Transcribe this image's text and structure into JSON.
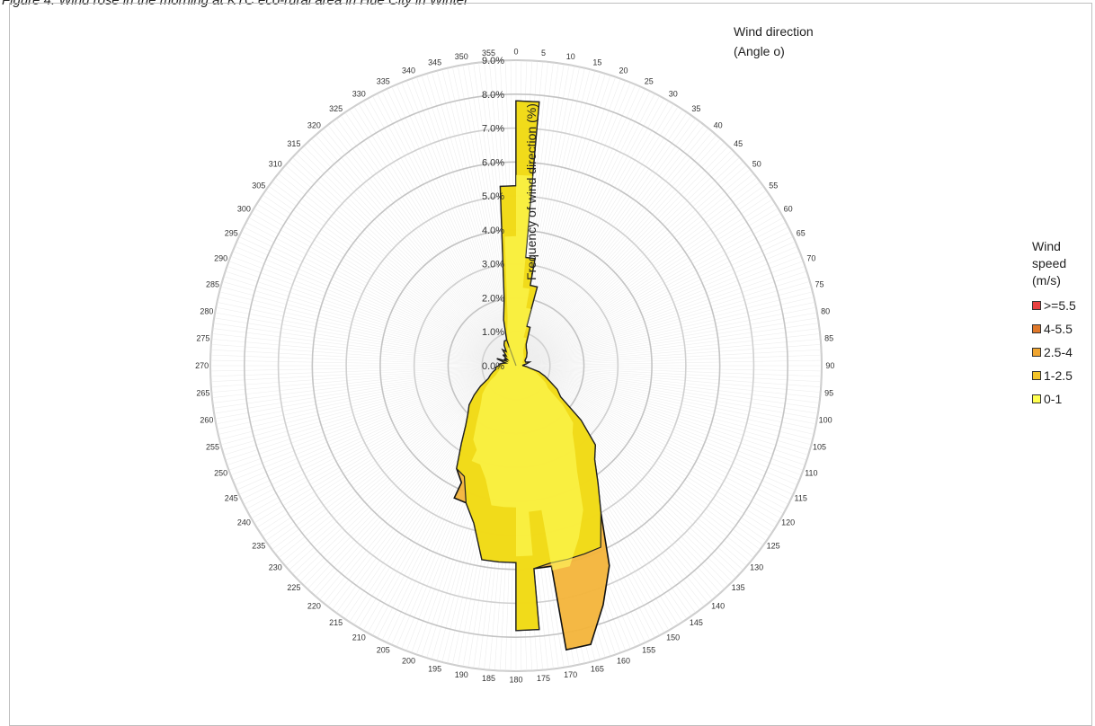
{
  "caption": "Figure 4. Wind rose in the morning at KTC eco-rural area in Hue City in Winter",
  "chart_data": {
    "type": "rose",
    "angle_title_line1": "Wind direction",
    "angle_title_line2": "(Angle  o)",
    "radial_title": "Frequency of wind direction (%)",
    "radial_ticks": [
      "0.0%",
      "1.0%",
      "2.0%",
      "3.0%",
      "4.0%",
      "5.0%",
      "6.0%",
      "7.0%",
      "8.0%",
      "9.0%"
    ],
    "rmax": 9.0,
    "direction_labels": [
      "0",
      "5",
      "10",
      "15",
      "20",
      "25",
      "30",
      "35",
      "40",
      "45",
      "50",
      "55",
      "60",
      "65",
      "70",
      "75",
      "80",
      "85",
      "90",
      "95",
      "100",
      "105",
      "110",
      "115",
      "120",
      "125",
      "130",
      "135",
      "140",
      "145",
      "150",
      "155",
      "160",
      "165",
      "170",
      "175",
      "180",
      "185",
      "190",
      "195",
      "200",
      "205",
      "210",
      "215",
      "220",
      "225",
      "230",
      "235",
      "240",
      "245",
      "250",
      "255",
      "260",
      "265",
      "270",
      "275",
      "280",
      "285",
      "290",
      "295",
      "300",
      "305",
      "310",
      "315",
      "320",
      "325",
      "330",
      "335",
      "340",
      "345",
      "350",
      "355"
    ],
    "legend_title": [
      "Wind",
      "speed",
      "(m/s)"
    ],
    "sectors": [
      {
        "from": -5,
        "to": 0,
        "speed_0_1": 0.0,
        "speed_1_2_5": 3.6
      },
      {
        "from": 0,
        "to": 5,
        "speed_0_1": 0.0,
        "speed_1_2_5": 1.9
      },
      {
        "from": 5,
        "to": 10,
        "speed_0_1": 0.0,
        "speed_1_2_5": 2.5
      },
      {
        "from": 10,
        "to": 15,
        "speed_0_1": 0.0,
        "speed_1_2_5": 1.7
      },
      {
        "from": -5,
        "to": 0,
        "speed_0_1": 5.3,
        "speed_1_2_5": 0.0
      },
      {
        "from": 0,
        "to": 5,
        "speed_0_1": 7.8,
        "speed_1_2_5": 0.0
      },
      {
        "from": 5,
        "to": 10,
        "speed_0_1": 3.2,
        "speed_1_2_5": 0.0
      }
    ],
    "series": [
      {
        "name": ">=5.5",
        "color": "#e84040"
      },
      {
        "name": "4-5.5",
        "color": "#e0782a"
      },
      {
        "name": "2.5-4",
        "color": "#f0a530"
      },
      {
        "name": "1-2.5",
        "color": "#f3c42a"
      },
      {
        "name": "0-1",
        "color": "#ffff50"
      }
    ],
    "profile_outer": [
      [
        -20,
        0.8
      ],
      [
        -15,
        1.4
      ],
      [
        -10,
        2.0
      ],
      [
        -5,
        5.3
      ],
      [
        0,
        5.3
      ],
      [
        0,
        7.8
      ],
      [
        5,
        7.8
      ],
      [
        5,
        3.2
      ],
      [
        10,
        3.2
      ],
      [
        10,
        2.4
      ],
      [
        15,
        2.4
      ],
      [
        15,
        1.2
      ],
      [
        20,
        1.2
      ],
      [
        25,
        0.7
      ],
      [
        30,
        0.6
      ],
      [
        40,
        0.5
      ],
      [
        50,
        0.4
      ],
      [
        60,
        0.3
      ],
      [
        70,
        0.3
      ],
      [
        75,
        0.4
      ],
      [
        80,
        0.3
      ],
      [
        85,
        0.2
      ],
      [
        90,
        0.2
      ],
      [
        95,
        0.3
      ],
      [
        100,
        0.4
      ],
      [
        105,
        0.7
      ],
      [
        110,
        0.9
      ],
      [
        115,
        1.1
      ],
      [
        120,
        1.4
      ],
      [
        125,
        1.6
      ],
      [
        130,
        2.5
      ],
      [
        135,
        3.3
      ],
      [
        140,
        3.6
      ],
      [
        145,
        4.2
      ],
      [
        150,
        5.0
      ],
      [
        155,
        6.5
      ],
      [
        160,
        7.5
      ],
      [
        165,
        8.5
      ],
      [
        170,
        8.5
      ],
      [
        170,
        6.0
      ],
      [
        175,
        6.0
      ],
      [
        175,
        7.8
      ],
      [
        180,
        7.8
      ],
      [
        180,
        5.8
      ],
      [
        185,
        5.8
      ],
      [
        185,
        5.8
      ],
      [
        190,
        5.8
      ],
      [
        195,
        4.8
      ],
      [
        200,
        4.3
      ],
      [
        205,
        4.3
      ],
      [
        205,
        3.8
      ],
      [
        210,
        3.5
      ],
      [
        215,
        2.8
      ],
      [
        220,
        2.3
      ],
      [
        225,
        2.0
      ],
      [
        230,
        1.8
      ],
      [
        235,
        1.5
      ],
      [
        240,
        1.2
      ],
      [
        245,
        0.9
      ],
      [
        250,
        0.8
      ],
      [
        255,
        0.7
      ],
      [
        260,
        0.6
      ],
      [
        265,
        0.6
      ],
      [
        270,
        0.5
      ],
      [
        275,
        0.5
      ],
      [
        280,
        0.4
      ],
      [
        285,
        0.3
      ],
      [
        290,
        0.6
      ],
      [
        295,
        0.3
      ],
      [
        300,
        0.4
      ],
      [
        305,
        0.3
      ],
      [
        310,
        0.5
      ],
      [
        315,
        0.4
      ],
      [
        320,
        0.6
      ],
      [
        325,
        0.5
      ],
      [
        330,
        0.7
      ],
      [
        335,
        0.8
      ],
      [
        340,
        0.8
      ]
    ]
  }
}
